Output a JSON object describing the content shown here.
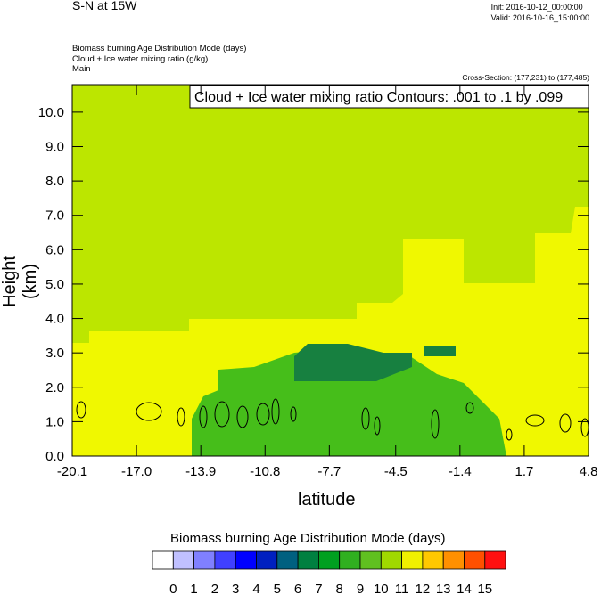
{
  "header": {
    "title": "S-N at 15W",
    "init": "Init: 2016-10-12_00:00:00",
    "valid": "Valid: 2016-10-16_15:00:00",
    "meta_line1": "Biomass burning Age Distribution Mode   (days)",
    "meta_line2": "Cloud + Ice water mixing ratio   (g/kg)",
    "meta_line3": "Main",
    "cross_section": "Cross-Section: (177,231) to (177,485)"
  },
  "chart_data": {
    "type": "heatmap",
    "title": "S-N at 15W",
    "xlabel": "latitude",
    "ylabel": "Height (km)",
    "xlim": [
      -20.1,
      4.8
    ],
    "ylim": [
      0,
      10.8
    ],
    "x_ticks": [
      "-20.1",
      "-17.0",
      "-13.9",
      "-10.8",
      "-7.7",
      "-4.5",
      "-1.4",
      "1.7",
      "4.8"
    ],
    "x_tick_values": [
      -20.1,
      -17.0,
      -13.9,
      -10.8,
      -7.7,
      -4.5,
      -1.4,
      1.7,
      4.8
    ],
    "y_ticks": [
      "0.0",
      "1.0",
      "2.0",
      "3.0",
      "4.0",
      "5.0",
      "6.0",
      "7.0",
      "8.0",
      "9.0",
      "10.0"
    ],
    "y_tick_values": [
      0,
      1,
      2,
      3,
      4,
      5,
      6,
      7,
      8,
      9,
      10
    ],
    "contour_label": "Cloud + Ice water mixing ratio Contours: .001 to .1 by .099",
    "colorbar": {
      "title": "Biomass burning Age Distribution Mode  (days)",
      "labels": [
        "0",
        "1",
        "2",
        "3",
        "4",
        "5",
        "6",
        "7",
        "8",
        "9",
        "10",
        "11",
        "12",
        "13",
        "14",
        "15"
      ],
      "colors": [
        "#ffffff",
        "#c0c0ff",
        "#8080ff",
        "#4040ff",
        "#0000ff",
        "#0020c0",
        "#006080",
        "#008040",
        "#00a020",
        "#30b020",
        "#60c020",
        "#a0d800",
        "#f0f000",
        "#ffc800",
        "#ff9000",
        "#ff5000",
        "#ff1010"
      ]
    },
    "regions": [
      {
        "value_days": "11",
        "color": "#bce600",
        "description_lat": [
          -20.1,
          4.8
        ],
        "height_km": [
          3.2,
          10.8
        ]
      },
      {
        "value_days": "12",
        "color": "#f0f800",
        "lat": [
          -20.1,
          4.8
        ],
        "height_km": [
          0,
          3.3
        ]
      },
      {
        "value_days": "12",
        "color": "#f0f800",
        "lat": [
          -3.6,
          4.8
        ],
        "height_km": [
          3.0,
          6.4
        ]
      },
      {
        "value_days": "9",
        "color": "#46be1a",
        "lat": [
          -13.9,
          0.5
        ],
        "height_km": [
          0,
          2.2
        ]
      },
      {
        "value_days": "7",
        "color": "#178040",
        "lat": [
          -8.7,
          -4.2
        ],
        "height_km": [
          2.2,
          3.0
        ]
      }
    ]
  }
}
